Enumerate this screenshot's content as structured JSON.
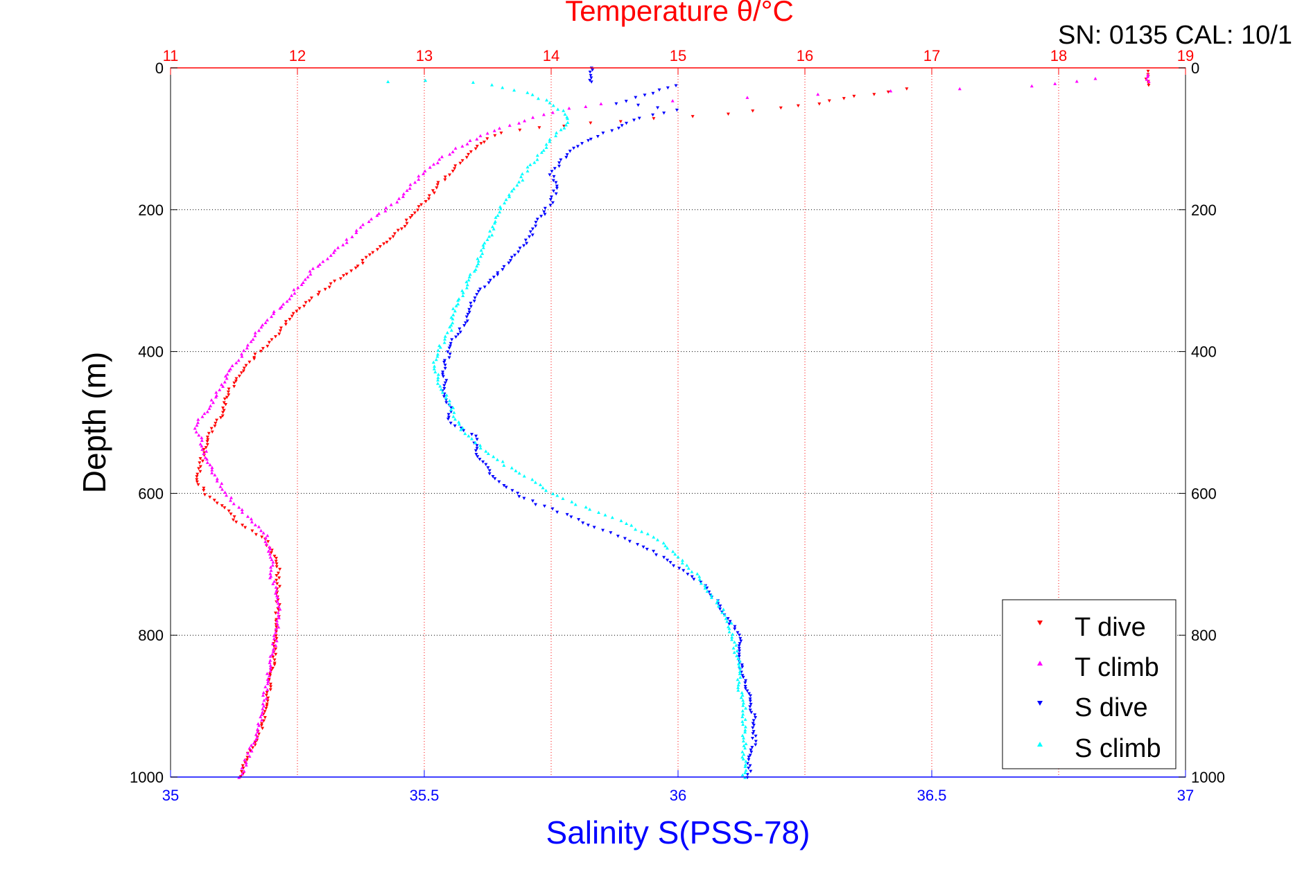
{
  "chart_data": {
    "type": "scatter",
    "title": "Temperature θ/°C",
    "header_text": "SN: 0135  CAL: 10/1",
    "ylabel": "Depth (m)",
    "xlabel_bottom": "Salinity S(PSS-78)",
    "xlabel_top": "Temperature θ/°C",
    "ylim": [
      0,
      1000
    ],
    "y_inverted": true,
    "y_ticks": [
      0,
      200,
      400,
      600,
      800,
      1000
    ],
    "x_bottom_lim": [
      35,
      37
    ],
    "x_bottom_ticks": [
      "35",
      "35.5",
      "36",
      "36.5",
      "37"
    ],
    "x_top_lim": [
      11,
      19
    ],
    "x_top_ticks": [
      "11",
      "12",
      "13",
      "14",
      "15",
      "16",
      "17",
      "18",
      "19"
    ],
    "grid": true,
    "legend_placement": "bottom-right",
    "legend": [
      "T dive",
      "T climb",
      "S dive",
      "S climb"
    ],
    "colors": {
      "title": "#ff0000",
      "salinity_axis": "#0000ff",
      "t_dive": "#ff0000",
      "t_climb": "#ff00ff",
      "s_dive": "#0000ff",
      "s_climb": "#00ffff"
    },
    "series": [
      {
        "name": "T dive",
        "axis": "top",
        "marker": "triangle-down",
        "color": "#ff0000",
        "points": [
          [
            18.7,
            5
          ],
          [
            18.7,
            15
          ],
          [
            18.7,
            25
          ],
          [
            16.8,
            30
          ],
          [
            16.4,
            40
          ],
          [
            16.1,
            50
          ],
          [
            15.8,
            57
          ],
          [
            15.4,
            65
          ],
          [
            14.8,
            72
          ],
          [
            14.3,
            78
          ],
          [
            13.9,
            85
          ],
          [
            13.6,
            92
          ],
          [
            13.5,
            100
          ],
          [
            13.4,
            115
          ],
          [
            13.3,
            130
          ],
          [
            13.2,
            150
          ],
          [
            13.1,
            165
          ],
          [
            13.05,
            180
          ],
          [
            12.95,
            200
          ],
          [
            12.8,
            230
          ],
          [
            12.6,
            260
          ],
          [
            12.4,
            290
          ],
          [
            12.15,
            320
          ],
          [
            11.95,
            350
          ],
          [
            11.85,
            375
          ],
          [
            11.7,
            400
          ],
          [
            11.55,
            430
          ],
          [
            11.45,
            460
          ],
          [
            11.4,
            490
          ],
          [
            11.3,
            520
          ],
          [
            11.25,
            550
          ],
          [
            11.2,
            580
          ],
          [
            11.3,
            605
          ],
          [
            11.45,
            625
          ],
          [
            11.55,
            645
          ],
          [
            11.75,
            665
          ],
          [
            11.85,
            700
          ],
          [
            11.85,
            750
          ],
          [
            11.83,
            800
          ],
          [
            11.8,
            850
          ],
          [
            11.75,
            900
          ],
          [
            11.7,
            940
          ],
          [
            11.6,
            975
          ],
          [
            11.55,
            1000
          ]
        ]
      },
      {
        "name": "T climb",
        "axis": "top",
        "marker": "triangle-up",
        "color": "#ff00ff",
        "points": [
          [
            18.7,
            10
          ],
          [
            18.7,
            20
          ],
          [
            18.3,
            15
          ],
          [
            17.8,
            25
          ],
          [
            14.4,
            50
          ],
          [
            14.0,
            62
          ],
          [
            13.8,
            75
          ],
          [
            13.6,
            85
          ],
          [
            13.4,
            100
          ],
          [
            13.3,
            110
          ],
          [
            13.15,
            125
          ],
          [
            13.0,
            145
          ],
          [
            12.9,
            165
          ],
          [
            12.8,
            185
          ],
          [
            12.65,
            205
          ],
          [
            12.5,
            225
          ],
          [
            12.35,
            250
          ],
          [
            12.15,
            280
          ],
          [
            12.0,
            310
          ],
          [
            11.85,
            340
          ],
          [
            11.7,
            370
          ],
          [
            11.6,
            395
          ],
          [
            11.5,
            420
          ],
          [
            11.4,
            450
          ],
          [
            11.3,
            480
          ],
          [
            11.2,
            505
          ],
          [
            11.25,
            530
          ],
          [
            11.3,
            560
          ],
          [
            11.4,
            590
          ],
          [
            11.5,
            615
          ],
          [
            11.65,
            640
          ],
          [
            11.75,
            660
          ],
          [
            11.8,
            690
          ],
          [
            11.8,
            720
          ],
          [
            11.85,
            760
          ],
          [
            11.83,
            800
          ],
          [
            11.78,
            850
          ],
          [
            11.73,
            900
          ],
          [
            11.68,
            940
          ],
          [
            11.6,
            975
          ],
          [
            11.55,
            1000
          ]
        ]
      },
      {
        "name": "S dive",
        "axis": "bottom",
        "marker": "triangle-down",
        "color": "#0000ff",
        "points": [
          [
            35.83,
            0
          ],
          [
            35.83,
            10
          ],
          [
            35.83,
            20
          ],
          [
            36.0,
            25
          ],
          [
            35.95,
            35
          ],
          [
            35.88,
            50
          ],
          [
            36.0,
            60
          ],
          [
            35.92,
            70
          ],
          [
            35.88,
            85
          ],
          [
            35.83,
            100
          ],
          [
            35.8,
            110
          ],
          [
            35.77,
            130
          ],
          [
            35.75,
            150
          ],
          [
            35.76,
            170
          ],
          [
            35.75,
            190
          ],
          [
            35.73,
            210
          ],
          [
            35.71,
            235
          ],
          [
            35.69,
            255
          ],
          [
            35.66,
            280
          ],
          [
            35.63,
            300
          ],
          [
            35.6,
            320
          ],
          [
            35.59,
            340
          ],
          [
            35.58,
            360
          ],
          [
            35.56,
            380
          ],
          [
            35.55,
            400
          ],
          [
            35.54,
            420
          ],
          [
            35.54,
            440
          ],
          [
            35.54,
            460
          ],
          [
            35.55,
            480
          ],
          [
            35.55,
            500
          ],
          [
            35.6,
            520
          ],
          [
            35.6,
            540
          ],
          [
            35.62,
            560
          ],
          [
            35.64,
            580
          ],
          [
            35.68,
            600
          ],
          [
            35.72,
            615
          ],
          [
            35.78,
            630
          ],
          [
            35.82,
            645
          ],
          [
            35.88,
            660
          ],
          [
            35.93,
            675
          ],
          [
            35.97,
            690
          ],
          [
            36.0,
            705
          ],
          [
            36.05,
            730
          ],
          [
            36.08,
            755
          ],
          [
            36.1,
            780
          ],
          [
            36.12,
            800
          ],
          [
            36.12,
            830
          ],
          [
            36.13,
            860
          ],
          [
            36.14,
            890
          ],
          [
            36.15,
            920
          ],
          [
            36.15,
            950
          ],
          [
            36.14,
            980
          ],
          [
            36.14,
            1000
          ]
        ]
      },
      {
        "name": "S climb",
        "axis": "bottom",
        "marker": "triangle-up",
        "color": "#00ffff",
        "points": [
          [
            35.43,
            20
          ],
          [
            35.5,
            18
          ],
          [
            35.6,
            20
          ],
          [
            35.63,
            25
          ],
          [
            35.7,
            35
          ],
          [
            35.75,
            50
          ],
          [
            35.78,
            65
          ],
          [
            35.78,
            80
          ],
          [
            35.75,
            100
          ],
          [
            35.73,
            120
          ],
          [
            35.7,
            145
          ],
          [
            35.68,
            170
          ],
          [
            35.65,
            195
          ],
          [
            35.64,
            220
          ],
          [
            35.62,
            250
          ],
          [
            35.6,
            280
          ],
          [
            35.58,
            310
          ],
          [
            35.56,
            340
          ],
          [
            35.55,
            370
          ],
          [
            35.53,
            395
          ],
          [
            35.52,
            420
          ],
          [
            35.53,
            445
          ],
          [
            35.55,
            470
          ],
          [
            35.56,
            495
          ],
          [
            35.58,
            515
          ],
          [
            35.62,
            540
          ],
          [
            35.66,
            560
          ],
          [
            35.71,
            580
          ],
          [
            35.75,
            600
          ],
          [
            35.8,
            615
          ],
          [
            35.86,
            630
          ],
          [
            35.92,
            650
          ],
          [
            35.97,
            670
          ],
          [
            36.0,
            690
          ],
          [
            36.03,
            710
          ],
          [
            36.05,
            730
          ],
          [
            36.08,
            755
          ],
          [
            36.1,
            780
          ],
          [
            36.11,
            810
          ],
          [
            36.12,
            840
          ],
          [
            36.12,
            870
          ],
          [
            36.13,
            900
          ],
          [
            36.13,
            930
          ],
          [
            36.13,
            960
          ],
          [
            36.13,
            990
          ],
          [
            36.13,
            1000
          ]
        ]
      }
    ]
  }
}
